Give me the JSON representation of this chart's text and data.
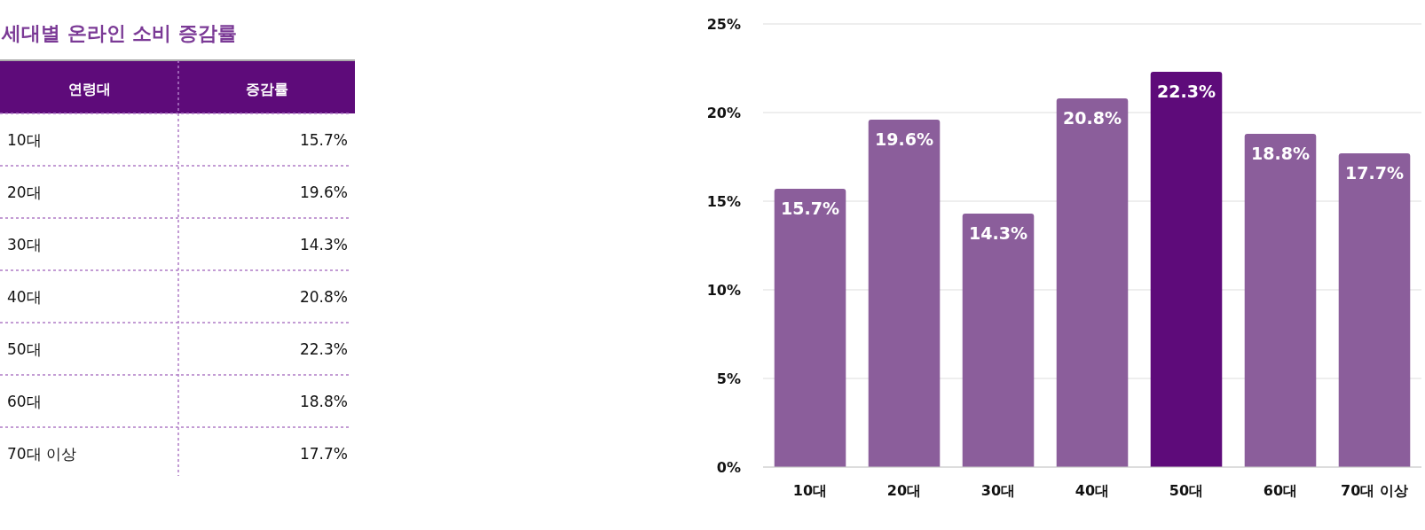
{
  "chart_data": {
    "type": "bar",
    "title": "세대별 온라인 소비 증감률",
    "annotations": [
      "연령대",
      "증감률"
    ],
    "categories": [
      "10대",
      "20대",
      "30대",
      "40대",
      "50대",
      "60대",
      "70대 이상"
    ],
    "values": [
      15.7,
      19.6,
      14.3,
      20.8,
      22.3,
      18.8,
      17.7
    ],
    "value_labels": [
      "15.7%",
      "19.6%",
      "14.3%",
      "20.8%",
      "22.3%",
      "18.8%",
      "17.7%"
    ],
    "colors": [
      "#8b5e9b",
      "#8b5e9b",
      "#8b5e9b",
      "#8b5e9b",
      "#5e0b7a",
      "#8b5e9b",
      "#8b5e9b"
    ],
    "ylim": [
      0,
      25
    ],
    "yticks": [
      {
        "value": 0,
        "label": "0%"
      },
      {
        "value": 5,
        "label": "5%"
      },
      {
        "value": 10,
        "label": "10%"
      },
      {
        "value": 15,
        "label": "15%"
      },
      {
        "value": 20,
        "label": "20%"
      },
      {
        "value": 25,
        "label": "25%"
      }
    ],
    "grid": "y"
  }
}
